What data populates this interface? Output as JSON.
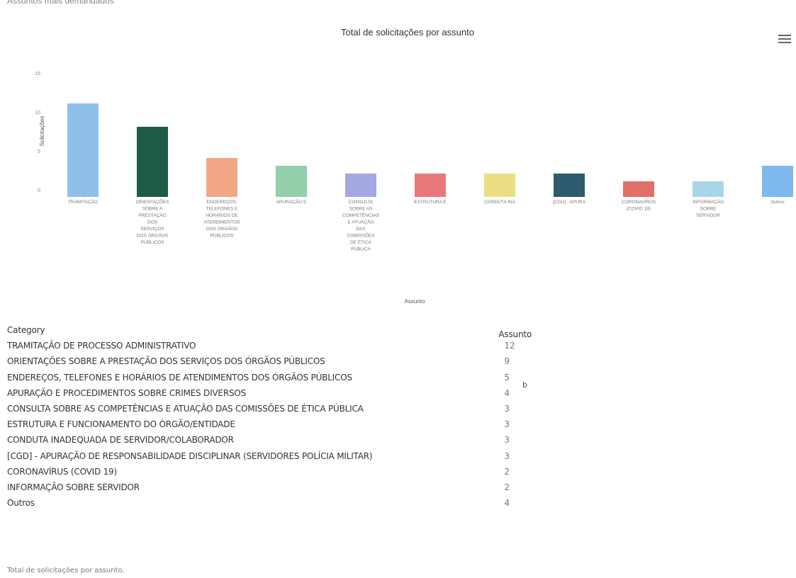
{
  "page": {
    "heading": "Assuntos mais demandados",
    "table_caption": "Total de solicitações por assunto.",
    "stray_mark": "b"
  },
  "chart_data": {
    "type": "bar",
    "title": "Total de solicitações por assunto",
    "xlabel": "Assunto",
    "ylabel": "Solicitações",
    "ylim": [
      0,
      15
    ],
    "yticks": [
      0,
      5,
      10,
      15
    ],
    "grid": false,
    "legend": "none",
    "categories": [
      "TRAMITAÇÃO",
      "ORIENTAÇÕES SOBRE A PRESTAÇÃO DOS SERVIÇOS DOS ÓRGÃOS PÚBLICOS",
      "ENDEREÇOS, TELEFONES E HORÁRIOS DE ATENDIMENTOS DOS ÓRGÃOS PÚBLICOS",
      "APURAÇÃO E",
      "CONSULTA SOBRE AS COMPETÊNCIAS E ATUAÇÃO DAS COMISSÕES DE ÉTICA PÚBLICA",
      "ESTRUTURA E",
      "CONDUTA INA",
      "[CGD] - APURA",
      "CORONAVÍRUS (COVID 19)",
      "INFORMAÇÃO SOBRE SERVIDOR",
      "Outros"
    ],
    "category_lines": [
      [
        "TRAMITAÇÃO"
      ],
      [
        "ORIENTAÇÕES",
        "SOBRE A",
        "PRESTAÇÃO",
        "DOS",
        "SERVIÇOS",
        "DOS ÓRGÃOS",
        "PÚBLICOS"
      ],
      [
        "ENDEREÇOS,",
        "TELEFONES E",
        "HORÁRIOS DE",
        "ATENDIMENTOS",
        "DOS ÓRGÃOS",
        "PÚBLICOS"
      ],
      [
        "APURAÇÃO E"
      ],
      [
        "CONSULTA",
        "SOBRE AS",
        "COMPETÊNCIAS",
        "E ATUAÇÃO",
        "DAS",
        "COMISSÕES",
        "DE ÉTICA",
        "PÚBLICA"
      ],
      [
        "ESTRUTURA E"
      ],
      [
        "CONDUTA INA"
      ],
      [
        "[CGD] - APURA"
      ],
      [
        "CORONAVÍRUS",
        "(COVID 19)"
      ],
      [
        "INFORMAÇÃO",
        "SOBRE",
        "SERVIDOR"
      ],
      [
        "Outros"
      ]
    ],
    "values": [
      12,
      9,
      5,
      4,
      3,
      3,
      3,
      3,
      2,
      2,
      4
    ],
    "colors": [
      "#8fc0ea",
      "#1e5a48",
      "#f2a887",
      "#93cfab",
      "#a3a8e2",
      "#e8777c",
      "#ecdf83",
      "#2e5b6e",
      "#e17067",
      "#a7d6e7",
      "#7fb8ee"
    ]
  },
  "table": {
    "headers": [
      "Category",
      "Assunto"
    ],
    "rows": [
      [
        "TRAMITAÇÃO DE PROCESSO ADMINISTRATIVO",
        "12"
      ],
      [
        "ORIENTAÇÕES SOBRE A PRESTAÇÃO DOS SERVIÇOS DOS ÓRGÃOS PÚBLICOS",
        "9"
      ],
      [
        "ENDEREÇOS, TELEFONES E HORÁRIOS DE ATENDIMENTOS DOS ÓRGÃOS PÚBLICOS",
        "5"
      ],
      [
        "APURAÇÃO E PROCEDIMENTOS SOBRE CRIMES DIVERSOS",
        "4"
      ],
      [
        "CONSULTA SOBRE AS COMPETÊNCIAS E ATUAÇÃO DAS COMISSÕES DE ÉTICA PÚBLICA",
        "3"
      ],
      [
        "ESTRUTURA E FUNCIONAMENTO DO ÓRGÃO/ENTIDADE",
        "3"
      ],
      [
        "CONDUTA INADEQUADA DE SERVIDOR/COLABORADOR",
        "3"
      ],
      [
        "[CGD] - APURAÇÃO DE RESPONSABILIDADE DISCIPLINAR (SERVIDORES POLÍCIA MILITAR)",
        "3"
      ],
      [
        "CORONAVÍRUS (COVID 19)",
        "2"
      ],
      [
        "INFORMAÇÃO SOBRE SERVIDOR",
        "2"
      ],
      [
        "Outros",
        "4"
      ]
    ]
  }
}
